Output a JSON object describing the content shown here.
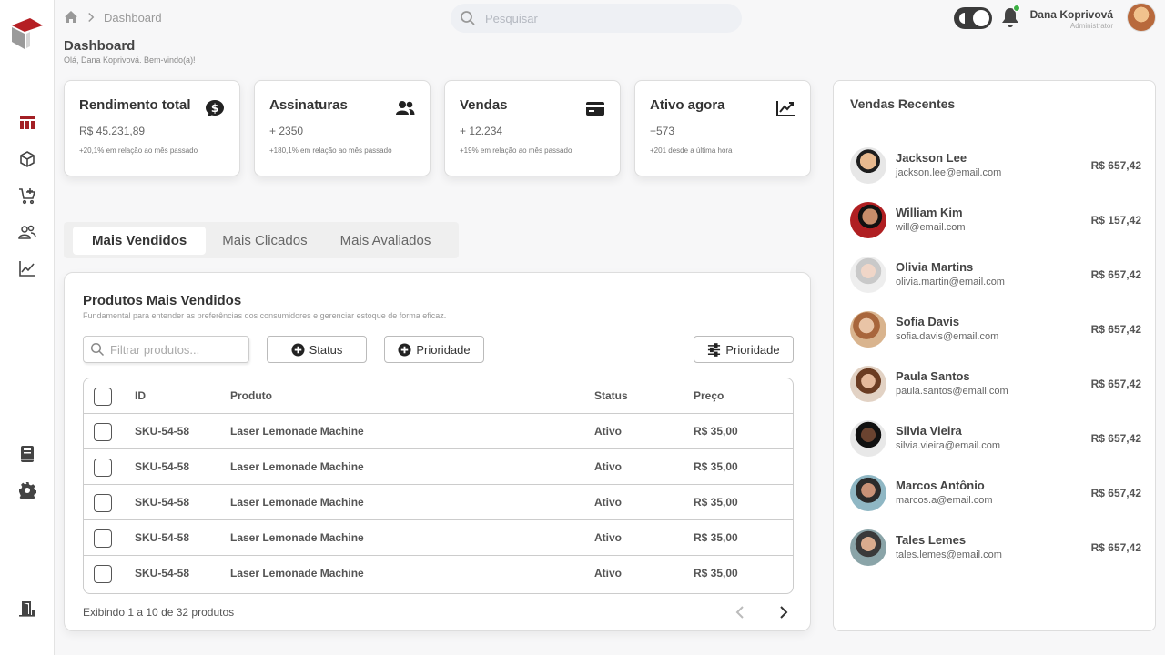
{
  "header": {
    "breadcrumb": "Dashboard",
    "search_placeholder": "Pesquisar",
    "user_name": "Dana Koprivová",
    "user_role": "Administrator"
  },
  "page": {
    "title": "Dashboard",
    "welcome": "Olá, Dana Koprivová. Bem-vindo(a)!"
  },
  "cards": [
    {
      "title": "Rendimento total",
      "value": "R$ 45.231,89",
      "note": "+20,1% em relação ao mês passado",
      "icon": "dollar-chat-icon"
    },
    {
      "title": "Assinaturas",
      "value": "+ 2350",
      "note": "+180,1% em relação ao mês passado",
      "icon": "users-icon"
    },
    {
      "title": "Vendas",
      "value": "+ 12.234",
      "note": "+19% em relação ao mês passado",
      "icon": "credit-card-icon"
    },
    {
      "title": "Ativo agora",
      "value": "+573",
      "note": "+201 desde a última hora",
      "icon": "trend-chart-icon"
    }
  ],
  "tabs": [
    "Mais Vendidos",
    "Mais Clicados",
    "Mais Avaliados"
  ],
  "products": {
    "title": "Produtos Mais Vendidos",
    "subtitle": "Fundamental para entender as preferências dos consumidores e gerenciar estoque de forma eficaz.",
    "filter_placeholder": "Filtrar produtos...",
    "btn_status": "Status",
    "btn_priority": "Prioridade",
    "btn_priority_right": "Prioridade",
    "columns": [
      "ID",
      "Produto",
      "Status",
      "Preço"
    ],
    "rows": [
      {
        "id": "SKU-54-58",
        "product": "Laser Lemonade Machine",
        "status": "Ativo",
        "price": "R$ 35,00"
      },
      {
        "id": "SKU-54-58",
        "product": "Laser Lemonade Machine",
        "status": "Ativo",
        "price": "R$ 35,00"
      },
      {
        "id": "SKU-54-58",
        "product": "Laser Lemonade Machine",
        "status": "Ativo",
        "price": "R$ 35,00"
      },
      {
        "id": "SKU-54-58",
        "product": "Laser Lemonade Machine",
        "status": "Ativo",
        "price": "R$ 35,00"
      },
      {
        "id": "SKU-54-58",
        "product": "Laser Lemonade Machine",
        "status": "Ativo",
        "price": "R$ 35,00"
      }
    ],
    "pager_text": "Exibindo 1 a 10 de 32 produtos"
  },
  "recent": {
    "title": "Vendas Recentes",
    "sales": [
      {
        "name": "Jackson Lee",
        "email": "jackson.lee@email.com",
        "amount": "R$ 657,42"
      },
      {
        "name": "William Kim",
        "email": "will@email.com",
        "amount": "R$ 157,42"
      },
      {
        "name": "Olivia Martins",
        "email": "olivia.martin@email.com",
        "amount": "R$ 657,42"
      },
      {
        "name": "Sofia Davis",
        "email": "sofia.davis@email.com",
        "amount": "R$ 657,42"
      },
      {
        "name": "Paula Santos",
        "email": "paula.santos@email.com",
        "amount": "R$ 657,42"
      },
      {
        "name": "Silvia Vieira",
        "email": "silvia.vieira@email.com",
        "amount": "R$ 657,42"
      },
      {
        "name": "Marcos Antônio",
        "email": "marcos.a@email.com",
        "amount": "R$ 657,42"
      },
      {
        "name": "Tales Lemes",
        "email": "tales.lemes@email.com",
        "amount": "R$ 657,42"
      }
    ]
  },
  "colors": {
    "accent": "#a31f24",
    "text": "#333333",
    "background": "#f7f7f8"
  }
}
